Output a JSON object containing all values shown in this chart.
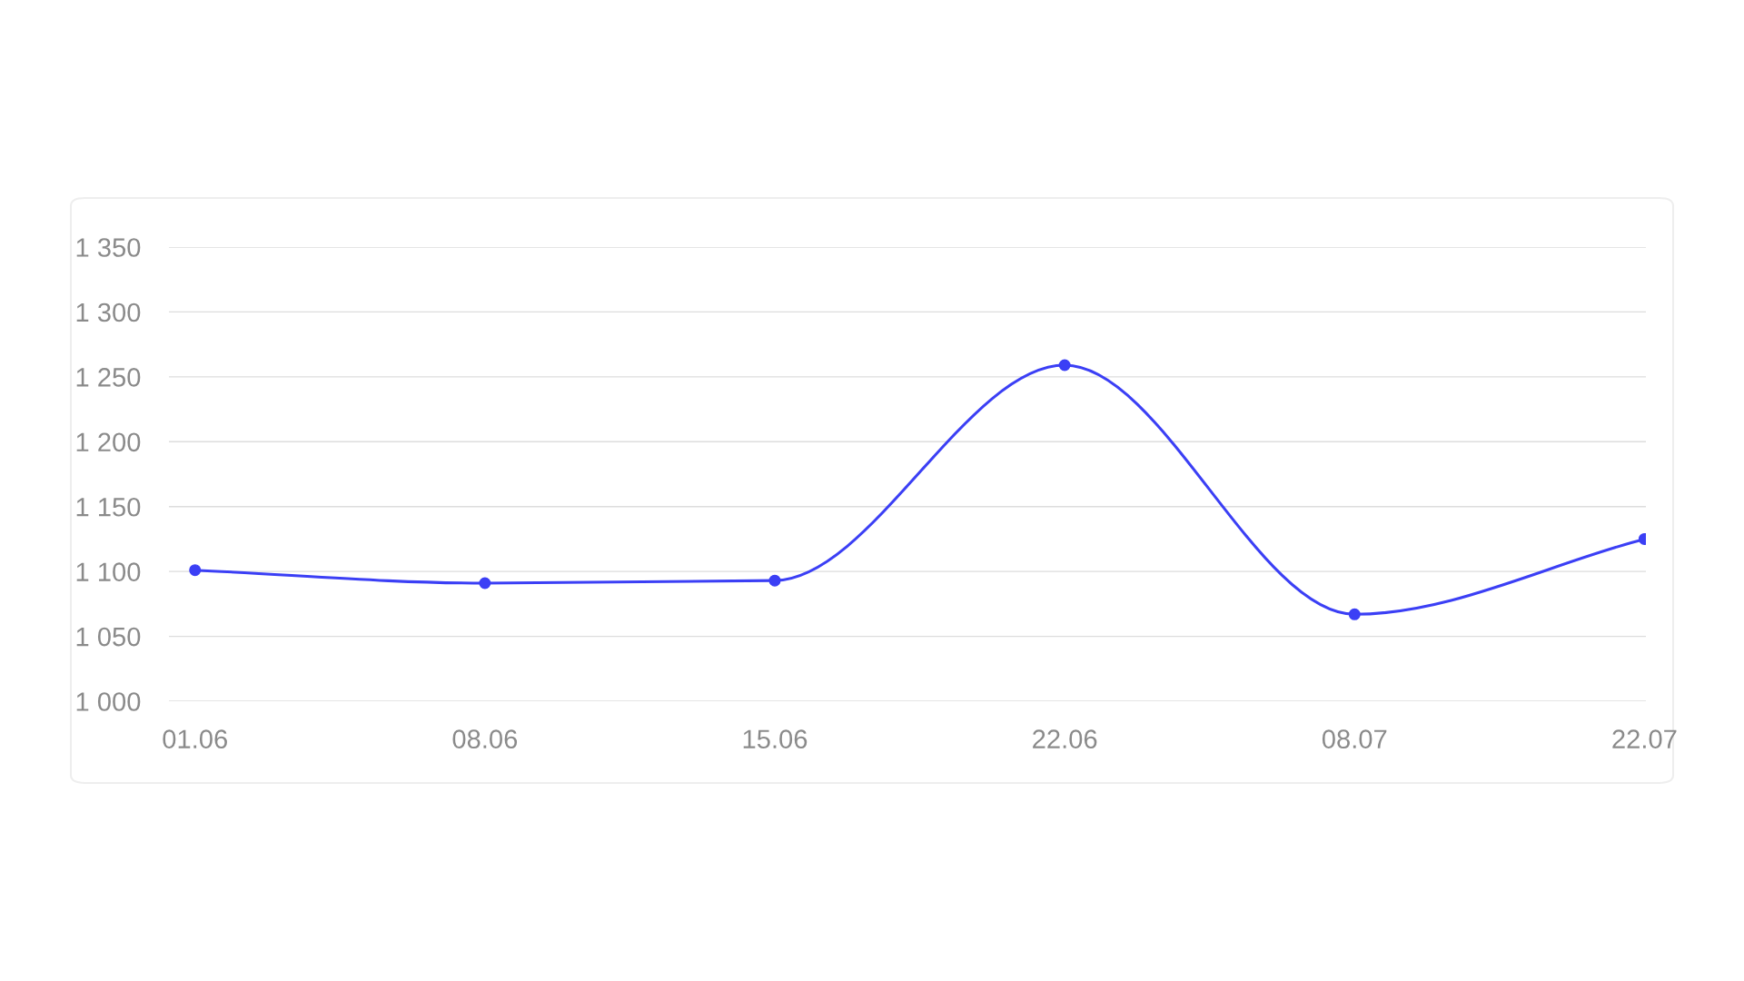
{
  "chart_data": {
    "type": "line",
    "categories": [
      "01.06",
      "08.06",
      "15.06",
      "22.06",
      "08.07",
      "22.07"
    ],
    "series": [
      {
        "color": "#3b3ff5",
        "values": [
          1101,
          1091,
          1093,
          1259,
          1067,
          1125
        ]
      }
    ],
    "ylim": [
      1000,
      1350
    ],
    "yticks": [
      {
        "value": 1000,
        "label": "1 000"
      },
      {
        "value": 1050,
        "label": "1 050"
      },
      {
        "value": 1100,
        "label": "1 100"
      },
      {
        "value": 1150,
        "label": "1 150"
      },
      {
        "value": 1200,
        "label": "1 200"
      },
      {
        "value": 1250,
        "label": "1 250"
      },
      {
        "value": 1300,
        "label": "1 300"
      },
      {
        "value": 1350,
        "label": "1 350"
      }
    ],
    "grid": "y",
    "marker": "circle",
    "line_style": "solid",
    "legend": false
  }
}
